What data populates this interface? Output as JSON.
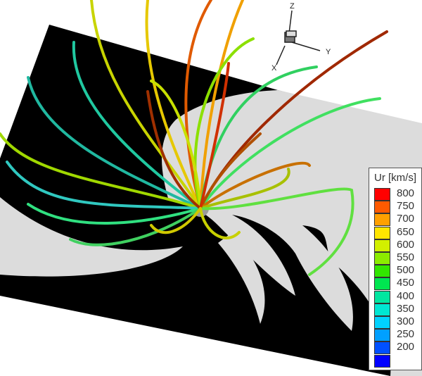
{
  "axes_triad": {
    "x_label": "X",
    "y_label": "Y",
    "z_label": "Z"
  },
  "legend": {
    "title": "Ur [km/s]",
    "ticks": [
      "800",
      "750",
      "700",
      "650",
      "600",
      "550",
      "500",
      "450",
      "400",
      "350",
      "300",
      "250",
      "200"
    ],
    "colors": [
      "#ff0000",
      "#ff5a00",
      "#ffa000",
      "#ffe600",
      "#d2f000",
      "#8cec00",
      "#32e600",
      "#00e650",
      "#00e6a0",
      "#00e6d2",
      "#00d2ff",
      "#00a0ff",
      "#0050ff",
      "#0000ff"
    ]
  },
  "slice_colors": {
    "dark": "#000000",
    "light": "#dcdcdc"
  }
}
